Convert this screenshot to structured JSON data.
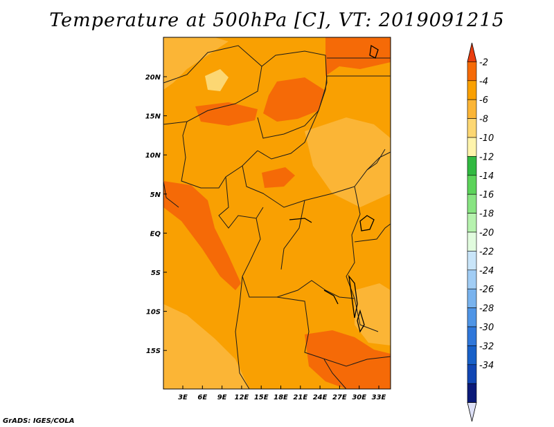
{
  "title": "Temperature at 500hPa [C], VT: 2019091215",
  "credit": "GrADS: IGES/COLA",
  "variable": "Temperature at 500hPa",
  "units": "C",
  "valid_time": "2019091215",
  "x_ticks": [
    "3E",
    "6E",
    "9E",
    "12E",
    "15E",
    "18E",
    "21E",
    "24E",
    "27E",
    "30E",
    "33E"
  ],
  "y_ticks": [
    "20N",
    "15N",
    "10N",
    "5N",
    "EQ",
    "5S",
    "10S",
    "15S"
  ],
  "colorbar": {
    "labels": [
      "-2",
      "-4",
      "-6",
      "-8",
      "-10",
      "-12",
      "-14",
      "-16",
      "-18",
      "-20",
      "-22",
      "-24",
      "-26",
      "-28",
      "-30",
      "-32",
      "-34"
    ],
    "colors": [
      "#ea3d0f",
      "#f56a07",
      "#f9a002",
      "#fbb536",
      "#fcd773",
      "#fef4ac",
      "#31b941",
      "#5cd35a",
      "#88e482",
      "#b6f2ae",
      "#e1fbde",
      "#c9e5f9",
      "#a1cdf5",
      "#79b3ee",
      "#4f95e6",
      "#2f77da",
      "#1860c8",
      "#1146b3",
      "#0b1a79",
      "#dde0f6"
    ]
  }
}
